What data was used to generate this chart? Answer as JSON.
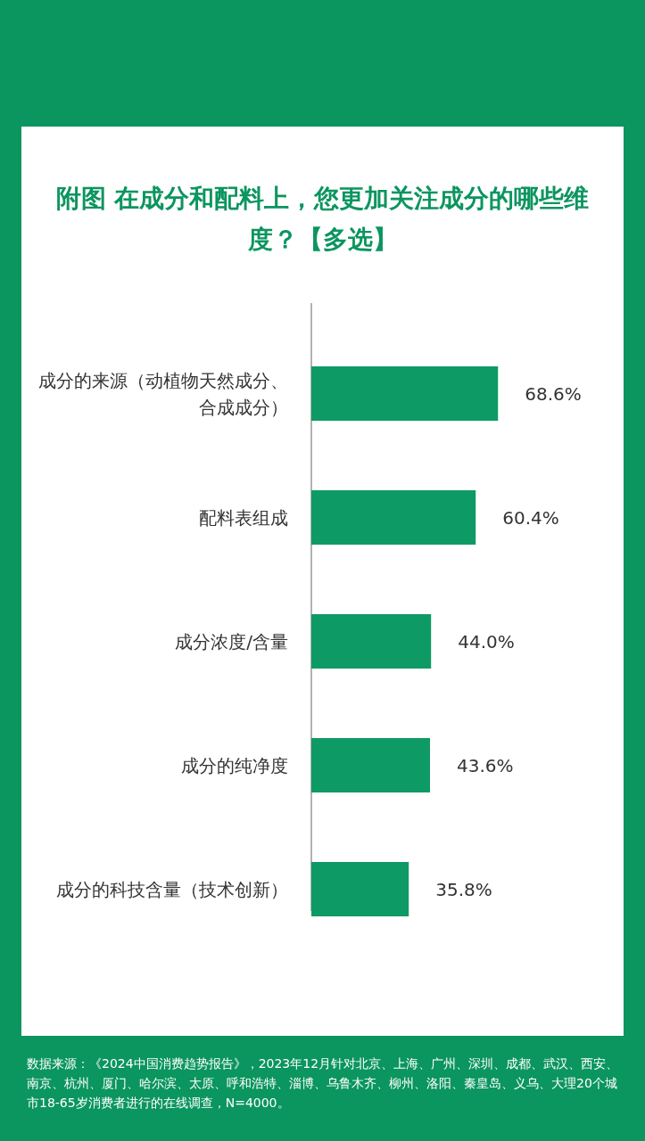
{
  "chart_data": {
    "type": "bar",
    "orientation": "horizontal",
    "title": "附图  在成分和配料上，您更加关注成分的哪些维度？【多选】",
    "categories": [
      "成分的来源（动植物天然成分、合成成分）",
      "配料表组成",
      "成分浓度/含量",
      "成分的纯净度",
      "成分的科技含量（技术创新）"
    ],
    "values": [
      68.6,
      60.4,
      44.0,
      43.6,
      35.8
    ],
    "value_labels": [
      "68.6%",
      "60.4%",
      "44.0%",
      "43.6%",
      "35.8%"
    ],
    "color": "#0e9a64",
    "annotations": [
      "数据来源：《2024中国消费趋势报告》，2023年12月针对北京、上海、广州、深圳、成都、武汉、西安、南京、杭州、厦门、哈尔滨、太原、呼和浩特、淄博、乌鲁木齐、柳州、洛阳、秦皇岛、义乌、大理20个城市18-65岁消费者进行的在线调查，N=4000。"
    ]
  }
}
